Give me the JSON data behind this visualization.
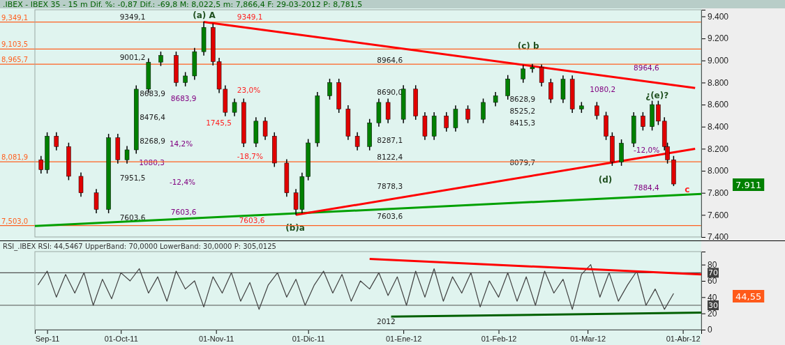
{
  "chart_data": [
    {
      "type": "candlestick",
      "title": ".IBEX - IBEX 35 -  15 m Dif. %: -0,87 Dif.: -69,8 M: 8,022,5 m: 7,866,4 F: 29-03-2012 P: 8,781,5",
      "tick_labels": "y",
      "xlim": [
        "2011-09-03",
        "2012-04-07"
      ],
      "ylim": [
        7400,
        9460
      ],
      "yticks": [
        {
          "value": 7400,
          "label": "7.400"
        },
        {
          "value": 7600,
          "label": "7.600"
        },
        {
          "value": 7800,
          "label": "7.800"
        },
        {
          "value": 8000,
          "label": "8.000"
        },
        {
          "value": 8200,
          "label": "8.200"
        },
        {
          "value": 8400,
          "label": "8.400"
        },
        {
          "value": 8600,
          "label": "8.600"
        },
        {
          "value": 8800,
          "label": "8.800"
        },
        {
          "value": 9000,
          "label": "9.000"
        },
        {
          "value": 9200,
          "label": "9.200"
        },
        {
          "value": 9400,
          "label": "9.400"
        }
      ],
      "series": [
        {
          "type": "line",
          "color": "#00a000",
          "x": [
            "2011-09-03",
            "2012-04-07"
          ],
          "values": [
            7500,
            7790
          ]
        },
        {
          "type": "line",
          "color": "#ff0000",
          "x": [
            "2011-10-28",
            "2012-04-05"
          ],
          "values": [
            9350,
            8750
          ]
        },
        {
          "type": "line",
          "color": "#ff0000",
          "x": [
            "2011-11-27",
            "2012-04-05"
          ],
          "values": [
            7600,
            8200
          ]
        },
        {
          "type": "candlestick",
          "x": [
            "2011-09-05",
            "2011-09-07",
            "2011-09-10",
            "2011-09-14",
            "2011-09-18",
            "2011-09-23",
            "2011-09-27",
            "2011-09-30",
            "2011-10-03",
            "2011-10-06",
            "2011-10-10",
            "2011-10-14",
            "2011-10-19",
            "2011-10-22",
            "2011-10-25",
            "2011-10-28",
            "2011-10-31",
            "2011-11-02",
            "2011-11-04",
            "2011-11-07",
            "2011-11-10",
            "2011-11-14",
            "2011-11-17",
            "2011-11-20",
            "2011-11-24",
            "2011-11-27",
            "2011-11-29",
            "2011-12-01",
            "2011-12-04",
            "2011-12-08",
            "2011-12-11",
            "2011-12-14",
            "2011-12-17",
            "2011-12-21",
            "2011-12-24",
            "2011-12-27",
            "2012-01-01",
            "2012-01-05",
            "2012-01-08",
            "2012-01-11",
            "2012-01-15",
            "2012-01-18",
            "2012-01-22",
            "2012-01-27",
            "2012-01-31",
            "2012-02-04",
            "2012-02-09",
            "2012-02-12",
            "2012-02-15",
            "2012-02-18",
            "2012-02-22",
            "2012-02-25",
            "2012-02-28",
            "2012-03-04",
            "2012-03-07",
            "2012-03-09",
            "2012-03-12",
            "2012-03-16",
            "2012-03-19",
            "2012-03-22",
            "2012-03-24",
            "2012-03-26",
            "2012-03-27",
            "2012-03-29"
          ],
          "ohlc": [
            [
              8100,
              8130,
              7980,
              8010
            ],
            [
              8010,
              8344,
              7980,
              8314
            ],
            [
              8314,
              8344,
              8190,
              8220
            ],
            [
              8220,
              8250,
              7920,
              7950
            ],
            [
              7950,
              7980,
              7770,
              7800
            ],
            [
              7800,
              7830,
              7620,
              7650
            ],
            [
              7650,
              8330,
              7620,
              8300
            ],
            [
              8300,
              8330,
              8070,
              8100
            ],
            [
              8100,
              8220,
              8070,
              8190
            ],
            [
              8190,
              8770,
              8160,
              8740
            ],
            [
              8740,
              9015,
              8710,
              8985
            ],
            [
              8985,
              9076,
              8955,
              9046
            ],
            [
              9046,
              9076,
              8770,
              8800
            ],
            [
              8800,
              8890,
              8770,
              8860
            ],
            [
              8860,
              9110,
              8830,
              9080
            ],
            [
              9080,
              9349.1,
              9050,
              9300
            ],
            [
              9300,
              9330,
              8960,
              8990
            ],
            [
              8990,
              9020,
              8710,
              8740
            ],
            [
              8740,
              8770,
              8500,
              8530
            ],
            [
              8530,
              8650,
              8500,
              8620
            ],
            [
              8620,
              8650,
              8220,
              8250
            ],
            [
              8250,
              8480,
              8220,
              8450
            ],
            [
              8450,
              8480,
              8284,
              8314
            ],
            [
              8314,
              8344,
              8040,
              8070
            ],
            [
              8070,
              8100,
              7770,
              7800
            ],
            [
              7800,
              7830,
              7603.6,
              7650
            ],
            [
              7650,
              7978,
              7620,
              7948
            ],
            [
              7948,
              8283,
              7918,
              8253
            ],
            [
              8253,
              8710,
              8223,
              8680
            ],
            [
              8680,
              8830,
              8650,
              8800
            ],
            [
              8800,
              8830,
              8530,
              8560
            ],
            [
              8560,
              8590,
              8284,
              8314
            ],
            [
              8314,
              8344,
              8190,
              8220
            ],
            [
              8220,
              8465,
              8190,
              8435
            ],
            [
              8435,
              8650,
              8405,
              8620
            ],
            [
              8620,
              8650,
              8437,
              8467
            ],
            [
              8467,
              8771,
              8437,
              8741
            ],
            [
              8741,
              8771,
              8467,
              8497
            ],
            [
              8497,
              8527,
              8284,
              8314
            ],
            [
              8314,
              8527,
              8284,
              8497
            ],
            [
              8497,
              8527,
              8360,
              8390
            ],
            [
              8390,
              8588,
              8360,
              8558
            ],
            [
              8558,
              8588,
              8437,
              8467
            ],
            [
              8467,
              8650,
              8437,
              8620
            ],
            [
              8620,
              8710,
              8590,
              8680
            ],
            [
              8680,
              8863,
              8650,
              8833
            ],
            [
              8833,
              8954,
              8803,
              8924
            ],
            [
              8924,
              8964.6,
              8894,
              8940
            ],
            [
              8940,
              8960,
              8770,
              8800
            ],
            [
              8800,
              8830,
              8620,
              8650
            ],
            [
              8650,
              8860,
              8620,
              8830
            ],
            [
              8830,
              8860,
              8530,
              8560
            ],
            [
              8560,
              8619,
              8530,
              8589
            ],
            [
              8589,
              8619,
              8470,
              8500
            ],
            [
              8500,
              8530,
              8284,
              8314
            ],
            [
              8314,
              8344,
              8050,
              8080
            ],
            [
              8080,
              8280,
              8050,
              8250
            ],
            [
              8250,
              8527,
              8220,
              8497
            ],
            [
              8497,
              8527,
              8370,
              8400
            ],
            [
              8400,
              8630,
              8370,
              8600
            ],
            [
              8600,
              8630,
              8420,
              8450
            ],
            [
              8450,
              8480,
              8190,
              8220
            ],
            [
              8220,
              8250,
              8070,
              8100
            ],
            [
              8100,
              8130,
              7866.4,
              7880
            ]
          ],
          "colors": [
            "#e00000",
            "#008000",
            "#e00000",
            "#e00000",
            "#e00000",
            "#e00000",
            "#008000",
            "#e00000",
            "#008000",
            "#008000",
            "#008000",
            "#008000",
            "#e00000",
            "#008000",
            "#008000",
            "#008000",
            "#e00000",
            "#e00000",
            "#e00000",
            "#008000",
            "#e00000",
            "#008000",
            "#e00000",
            "#e00000",
            "#e00000",
            "#e00000",
            "#008000",
            "#008000",
            "#008000",
            "#008000",
            "#e00000",
            "#e00000",
            "#e00000",
            "#008000",
            "#008000",
            "#e00000",
            "#008000",
            "#e00000",
            "#e00000",
            "#008000",
            "#e00000",
            "#008000",
            "#e00000",
            "#008000",
            "#008000",
            "#008000",
            "#008000",
            "#008000",
            "#e00000",
            "#e00000",
            "#008000",
            "#e00000",
            "#008000",
            "#e00000",
            "#e00000",
            "#e00000",
            "#008000",
            "#008000",
            "#e00000",
            "#008000",
            "#e00000",
            "#e00000",
            "#e00000",
            "#e00000"
          ]
        }
      ],
      "ref_lines": [
        {
          "axis": "y",
          "value": 9349.1,
          "label": "9,349,1",
          "color": "#ff6020"
        },
        {
          "axis": "y",
          "value": 9103.5,
          "label": "9,103,5",
          "color": "#ff6020"
        },
        {
          "axis": "y",
          "value": 8965.7,
          "label": "8,965,7",
          "color": "#ff6020"
        },
        {
          "axis": "y",
          "value": 8081.9,
          "label": "8,081,9",
          "color": "#ff6020"
        },
        {
          "axis": "y",
          "value": 7503.0,
          "label": "7,503,0",
          "color": "#ff6020"
        }
      ],
      "annotations": [
        "(a) A",
        "9349,1",
        "9001,2",
        "8683,9",
        "8476,4",
        "8268,9",
        "7951,5",
        "7603,6",
        "8683,9",
        "1080,3",
        "14,2%",
        "-12,4%",
        "7603,6",
        "9349,1",
        "23,0%",
        "1745,5",
        "-18,7%",
        "7603,6",
        "(b)a",
        "8964,6",
        "8690,0",
        "8287,1",
        "8122,4",
        "7878,3",
        "7603,6",
        "(c) b",
        "8628,9",
        "8525,2",
        "8415,3",
        "8079,7",
        "8964,6",
        "7884,4",
        "1080,2",
        "-12,0%",
        "¿(e)?",
        "(d)",
        "c",
        "7.911"
      ]
    },
    {
      "type": "line",
      "title": "RSI_.IBEX RSI: 44,5467 UpperBand: 70,0000 LowerBand: 30,0000 P: 305,0125",
      "xlim": [
        "2011-09-03",
        "2012-04-07"
      ],
      "xticks": [
        {
          "value": "2011-09-07",
          "label": "Sep-11"
        },
        {
          "value": "2011-10-01",
          "label": "01-Oct-11"
        },
        {
          "value": "2011-11-01",
          "label": "01-Nov-11"
        },
        {
          "value": "2011-12-01",
          "label": "01-Dic-11"
        },
        {
          "value": "2012-01-01",
          "label": "01-Ene-12"
        },
        {
          "value": "2012-02-01",
          "label": "01-Feb-12"
        },
        {
          "value": "2012-03-01",
          "label": "01-Mar-12"
        },
        {
          "value": "2012-04-01",
          "label": "01-Abr-12"
        }
      ],
      "ylim": [
        0,
        96
      ],
      "yticks": [
        0,
        20,
        40,
        60,
        80
      ],
      "series": [
        {
          "type": "line",
          "color": "#404040",
          "x": [
            "2011-09-04",
            "2011-09-07",
            "2011-09-10",
            "2011-09-13",
            "2011-09-16",
            "2011-09-19",
            "2011-09-22",
            "2011-09-25",
            "2011-09-28",
            "2011-10-01",
            "2011-10-04",
            "2011-10-07",
            "2011-10-10",
            "2011-10-13",
            "2011-10-16",
            "2011-10-19",
            "2011-10-22",
            "2011-10-25",
            "2011-10-28",
            "2011-10-31",
            "2011-11-03",
            "2011-11-06",
            "2011-11-09",
            "2011-11-12",
            "2011-11-15",
            "2011-11-18",
            "2011-11-21",
            "2011-11-24",
            "2011-11-27",
            "2011-11-30",
            "2011-12-03",
            "2011-12-06",
            "2011-12-09",
            "2011-12-12",
            "2011-12-15",
            "2011-12-18",
            "2011-12-21",
            "2011-12-24",
            "2011-12-27",
            "2011-12-30",
            "2012-01-02",
            "2012-01-05",
            "2012-01-08",
            "2012-01-11",
            "2012-01-14",
            "2012-01-17",
            "2012-01-20",
            "2012-01-23",
            "2012-01-26",
            "2012-01-29",
            "2012-02-01",
            "2012-02-04",
            "2012-02-07",
            "2012-02-10",
            "2012-02-13",
            "2012-02-16",
            "2012-02-19",
            "2012-02-22",
            "2012-02-25",
            "2012-02-28",
            "2012-03-02",
            "2012-03-05",
            "2012-03-08",
            "2012-03-11",
            "2012-03-14",
            "2012-03-17",
            "2012-03-20",
            "2012-03-23",
            "2012-03-26",
            "2012-03-29"
          ],
          "values": [
            55,
            72,
            40,
            68,
            45,
            70,
            30,
            62,
            38,
            70,
            60,
            75,
            45,
            65,
            35,
            72,
            50,
            60,
            28,
            65,
            45,
            70,
            35,
            58,
            25,
            55,
            70,
            40,
            62,
            30,
            55,
            72,
            45,
            68,
            35,
            60,
            50,
            70,
            42,
            65,
            30,
            72,
            40,
            75,
            35,
            65,
            45,
            70,
            28,
            60,
            40,
            70,
            35,
            65,
            30,
            72,
            45,
            62,
            25,
            68,
            80,
            40,
            70,
            35,
            55,
            72,
            30,
            50,
            25,
            44.55
          ]
        },
        {
          "type": "line",
          "color": "#ff0000",
          "x": [
            "2011-12-21",
            "2012-04-07"
          ],
          "values": [
            87,
            68
          ]
        },
        {
          "type": "line",
          "color": "#006000",
          "x": [
            "2011-12-28",
            "2012-04-07"
          ],
          "values": [
            16,
            21
          ]
        }
      ],
      "ref_lines": [
        {
          "axis": "y",
          "value": 70,
          "label": "70",
          "color": "#505050"
        },
        {
          "axis": "y",
          "value": 30,
          "label": "30",
          "color": "#505050"
        }
      ],
      "annotations": [
        "44,55",
        "2012"
      ]
    }
  ]
}
